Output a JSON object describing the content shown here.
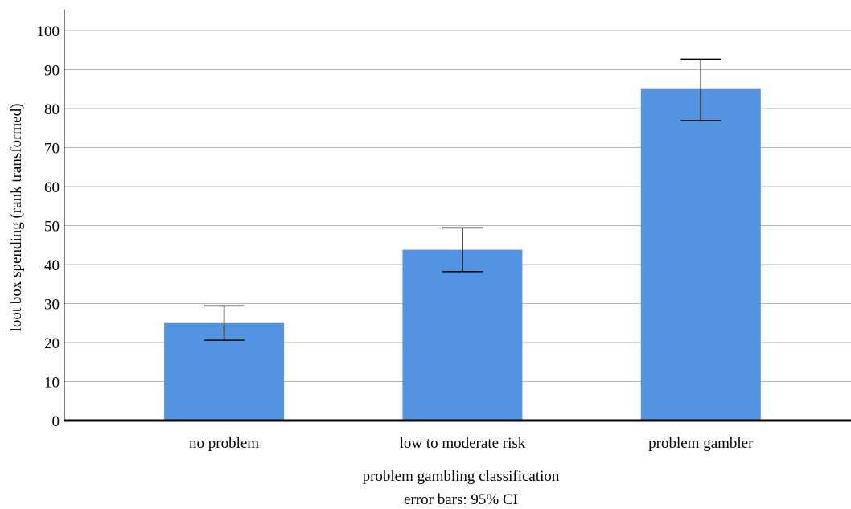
{
  "chart_data": {
    "type": "bar",
    "categories": [
      "no problem",
      "low to moderate risk",
      "problem gambler"
    ],
    "values": [
      25,
      43.8,
      85
    ],
    "error_bars": {
      "label": "error bars: 95% CI",
      "lower": [
        20.6,
        38.2,
        76.9
      ],
      "upper": [
        29.4,
        49.4,
        92.7
      ]
    },
    "xlabel": "problem gambling classification",
    "ylabel": "loot box spending (rank transformed)",
    "ylim": [
      0,
      100
    ],
    "yticks": [
      0,
      10,
      20,
      30,
      40,
      50,
      60,
      70,
      80,
      90,
      100
    ],
    "grid": true,
    "bar_color": "#5294e2"
  }
}
